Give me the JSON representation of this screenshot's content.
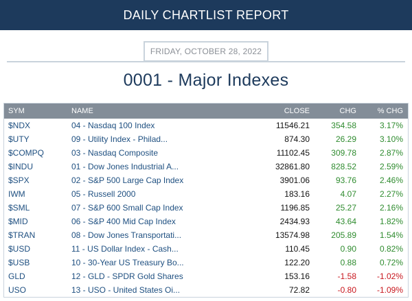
{
  "banner": {
    "title": "DAILY CHARTLIST REPORT"
  },
  "report_date": "FRIDAY, OCTOBER 28, 2022",
  "list_title": "0001 - Major Indexes",
  "table": {
    "headers": {
      "sym": "SYM",
      "name": "NAME",
      "close": "CLOSE",
      "chg": "CHG",
      "pct": "% CHG"
    },
    "rows": [
      {
        "sym": "$NDX",
        "name": "04 - Nasdaq 100 Index",
        "close": "11546.21",
        "chg": "354.58",
        "pct": "3.17%",
        "dir": "pos"
      },
      {
        "sym": "$UTY",
        "name": "09 - Utility Index - Philad...",
        "close": "874.30",
        "chg": "26.29",
        "pct": "3.10%",
        "dir": "pos"
      },
      {
        "sym": "$COMPQ",
        "name": "03 - Nasdaq Composite",
        "close": "11102.45",
        "chg": "309.78",
        "pct": "2.87%",
        "dir": "pos"
      },
      {
        "sym": "$INDU",
        "name": "01 - Dow Jones Industrial A...",
        "close": "32861.80",
        "chg": "828.52",
        "pct": "2.59%",
        "dir": "pos"
      },
      {
        "sym": "$SPX",
        "name": "02 - S&P 500 Large Cap Index",
        "close": "3901.06",
        "chg": "93.76",
        "pct": "2.46%",
        "dir": "pos"
      },
      {
        "sym": "IWM",
        "name": "05 - Russell 2000",
        "close": "183.16",
        "chg": "4.07",
        "pct": "2.27%",
        "dir": "pos"
      },
      {
        "sym": "$SML",
        "name": "07 - S&P 600 Small Cap Index",
        "close": "1196.85",
        "chg": "25.27",
        "pct": "2.16%",
        "dir": "pos"
      },
      {
        "sym": "$MID",
        "name": "06 - S&P 400 Mid Cap Index",
        "close": "2434.93",
        "chg": "43.64",
        "pct": "1.82%",
        "dir": "pos"
      },
      {
        "sym": "$TRAN",
        "name": "08 - Dow Jones Transportati...",
        "close": "13574.98",
        "chg": "205.89",
        "pct": "1.54%",
        "dir": "pos"
      },
      {
        "sym": "$USD",
        "name": "11 - US Dollar Index - Cash...",
        "close": "110.45",
        "chg": "0.90",
        "pct": "0.82%",
        "dir": "pos"
      },
      {
        "sym": "$USB",
        "name": "10 - 30-Year US Treasury Bo...",
        "close": "122.20",
        "chg": "0.88",
        "pct": "0.72%",
        "dir": "pos"
      },
      {
        "sym": "GLD",
        "name": "12 - GLD - SPDR Gold Shares",
        "close": "153.16",
        "chg": "-1.58",
        "pct": "-1.02%",
        "dir": "neg"
      },
      {
        "sym": "USO",
        "name": "13 - USO - United States Oi...",
        "close": "72.82",
        "chg": "-0.80",
        "pct": "-1.09%",
        "dir": "neg"
      }
    ]
  },
  "colors": {
    "banner_bg": "#1d3a5c",
    "header_bg": "#838d98",
    "link_text": "#1e4f80",
    "positive": "#2e8b2e",
    "negative": "#c8161d"
  }
}
